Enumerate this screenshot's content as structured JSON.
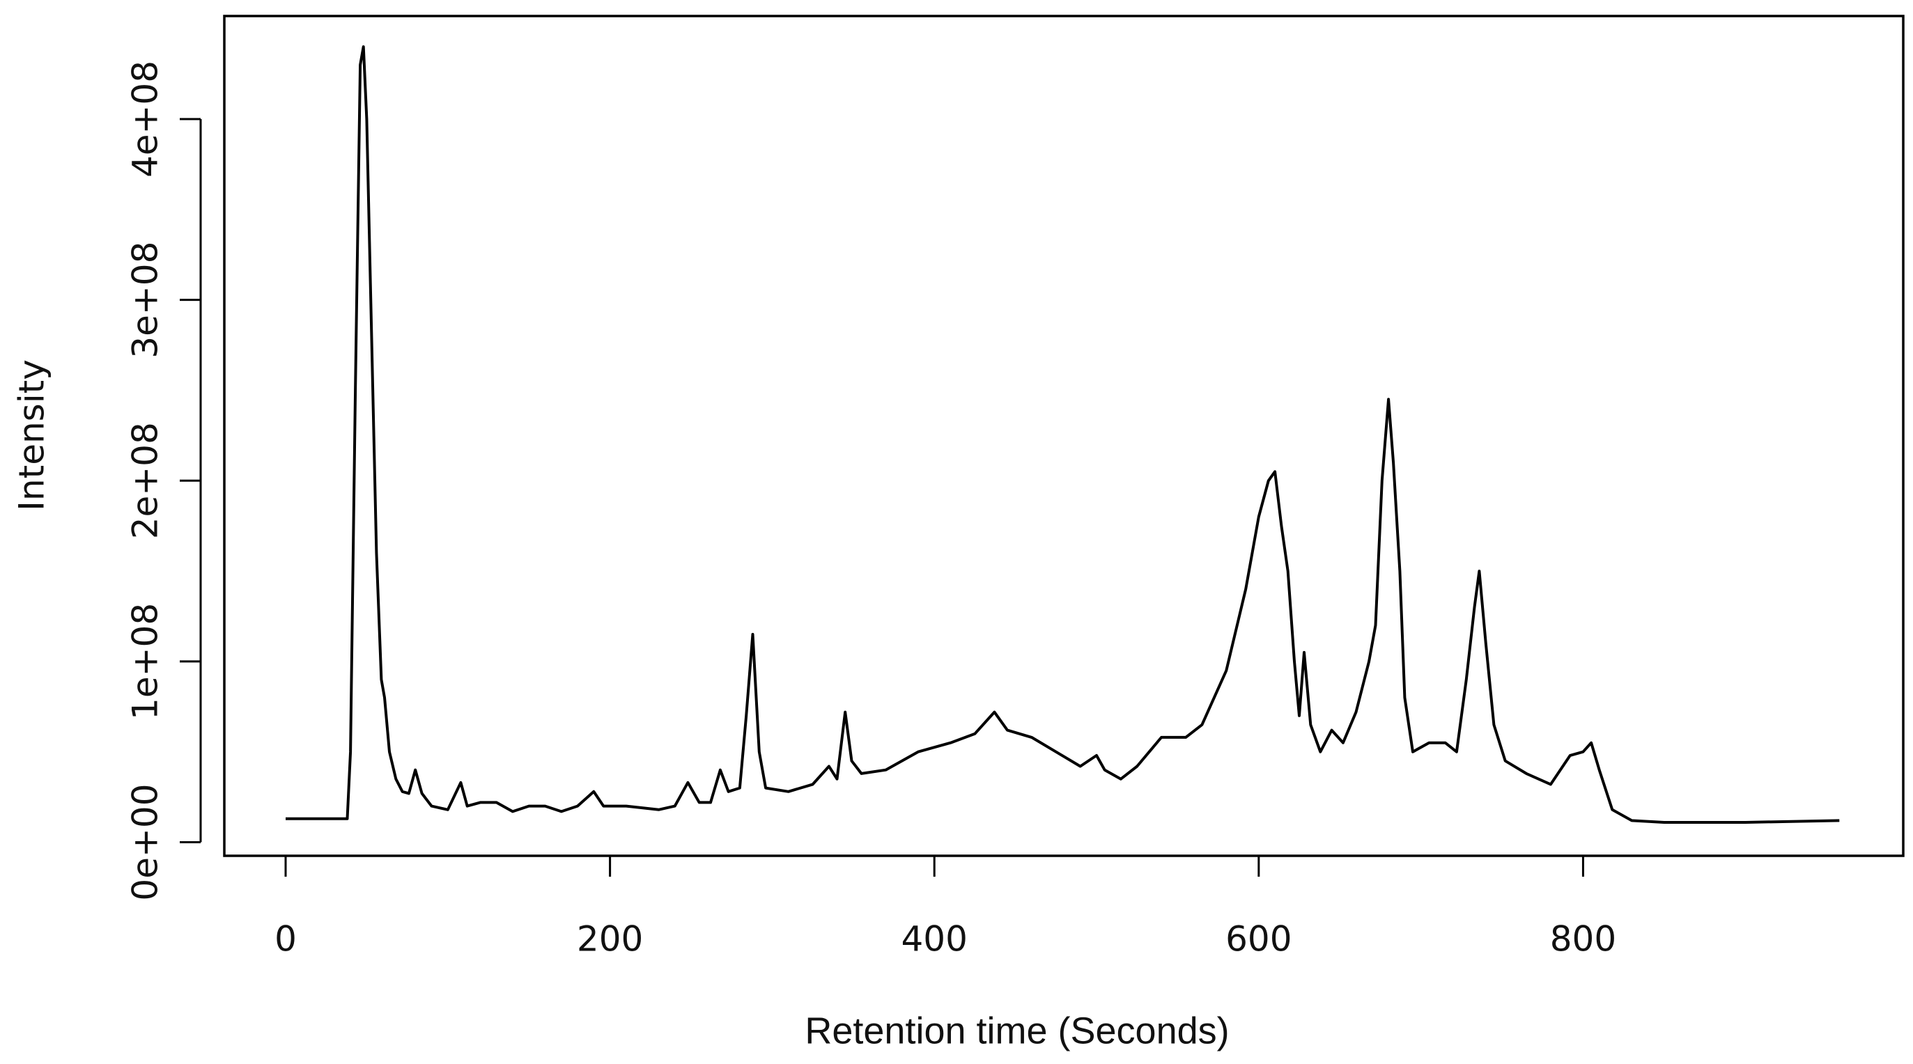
{
  "chart_data": {
    "type": "line",
    "x_label": "Retention time (Seconds)",
    "y_label": "Intensity",
    "x": [
      0,
      38,
      40,
      43,
      46,
      48,
      50,
      53,
      56,
      59,
      61,
      64,
      68,
      72,
      76,
      80,
      84,
      90,
      100,
      108,
      112,
      120,
      130,
      140,
      150,
      160,
      170,
      180,
      190,
      196,
      210,
      230,
      240,
      248,
      255,
      262,
      268,
      273,
      280,
      284,
      288,
      292,
      296,
      310,
      325,
      335,
      340,
      345,
      349,
      355,
      370,
      390,
      410,
      425,
      437,
      445,
      460,
      475,
      490,
      500,
      505,
      515,
      525,
      540,
      555,
      565,
      580,
      592,
      600,
      606,
      610,
      614,
      618,
      622,
      625,
      628,
      632,
      638,
      645,
      652,
      660,
      668,
      672,
      676,
      680,
      683,
      687,
      690,
      695,
      705,
      715,
      722,
      728,
      733,
      736,
      740,
      745,
      752,
      765,
      780,
      792,
      800,
      805,
      810,
      818,
      830,
      850,
      900,
      958
    ],
    "values": [
      13000000,
      13000000,
      50000000,
      250000000,
      430000000,
      440000000,
      400000000,
      280000000,
      160000000,
      90000000,
      80000000,
      50000000,
      35000000,
      28000000,
      27000000,
      40000000,
      27000000,
      20000000,
      18000000,
      33000000,
      20000000,
      22000000,
      22000000,
      17000000,
      20000000,
      20000000,
      17000000,
      20000000,
      28000000,
      20000000,
      20000000,
      18000000,
      20000000,
      33000000,
      22000000,
      22000000,
      40000000,
      28000000,
      30000000,
      70000000,
      115000000,
      50000000,
      30000000,
      28000000,
      32000000,
      42000000,
      35000000,
      72000000,
      45000000,
      38000000,
      40000000,
      50000000,
      55000000,
      60000000,
      72000000,
      62000000,
      58000000,
      50000000,
      42000000,
      48000000,
      40000000,
      35000000,
      42000000,
      58000000,
      58000000,
      65000000,
      95000000,
      140000000,
      180000000,
      200000000,
      205000000,
      175000000,
      150000000,
      100000000,
      70000000,
      105000000,
      65000000,
      50000000,
      62000000,
      55000000,
      72000000,
      100000000,
      120000000,
      200000000,
      245000000,
      210000000,
      150000000,
      80000000,
      50000000,
      55000000,
      55000000,
      50000000,
      90000000,
      130000000,
      150000000,
      110000000,
      65000000,
      45000000,
      38000000,
      32000000,
      48000000,
      50000000,
      55000000,
      40000000,
      18000000,
      12000000,
      11000000,
      11000000,
      12000000
    ],
    "color": "#000000",
    "xlim": [
      -37.8,
      997.4
    ],
    "ylim": [
      -7500000,
      457000000
    ],
    "xticks": [
      0,
      200,
      400,
      600,
      800
    ],
    "yticks": [
      {
        "value": 0,
        "label": "0e+00"
      },
      {
        "value": 100000000,
        "label": "1e+08"
      },
      {
        "value": 200000000,
        "label": "2e+08"
      },
      {
        "value": 300000000,
        "label": "3e+08"
      },
      {
        "value": 400000000,
        "label": "4e+08"
      }
    ]
  }
}
